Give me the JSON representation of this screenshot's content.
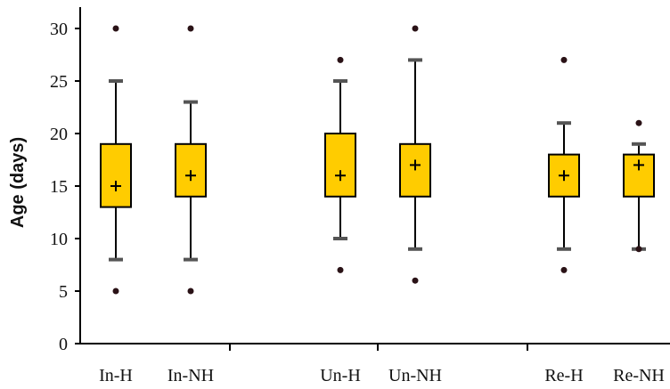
{
  "chart_data": {
    "type": "box",
    "title": "",
    "xlabel": "",
    "ylabel": "Age (days)",
    "ylim": [
      0,
      32
    ],
    "yticks": [
      0,
      5,
      10,
      15,
      20,
      25,
      30
    ],
    "grid": false,
    "legend": "none",
    "colors": {
      "box_fill": "#FFCC00",
      "box_stroke": "#000000",
      "whisker": "#000000",
      "whisker_cap": "#555555",
      "outlier": "#2a1216",
      "axis": "#000000"
    },
    "categories": [
      "In-H",
      "In-NH",
      "Un-H",
      "Un-NH",
      "Re-H",
      "Re-NH"
    ],
    "boxes": [
      {
        "category": "In-H",
        "q1": 13,
        "q3": 19,
        "mean": 15,
        "whisker_low": 8,
        "whisker_high": 25,
        "outliers": [
          5,
          30
        ]
      },
      {
        "category": "In-NH",
        "q1": 14,
        "q3": 19,
        "mean": 16,
        "whisker_low": 8,
        "whisker_high": 23,
        "outliers": [
          5,
          30
        ]
      },
      {
        "category": "Un-H",
        "q1": 14,
        "q3": 20,
        "mean": 16,
        "whisker_low": 10,
        "whisker_high": 25,
        "outliers": [
          7,
          27
        ]
      },
      {
        "category": "Un-NH",
        "q1": 14,
        "q3": 19,
        "mean": 17,
        "whisker_low": 9,
        "whisker_high": 27,
        "outliers": [
          6,
          30
        ]
      },
      {
        "category": "Re-H",
        "q1": 14,
        "q3": 18,
        "mean": 16,
        "whisker_low": 9,
        "whisker_high": 21,
        "outliers": [
          7,
          27
        ]
      },
      {
        "category": "Re-NH",
        "q1": 14,
        "q3": 18,
        "mean": 17,
        "whisker_low": 9,
        "whisker_high": 19,
        "outliers": [
          9,
          21
        ]
      }
    ]
  }
}
